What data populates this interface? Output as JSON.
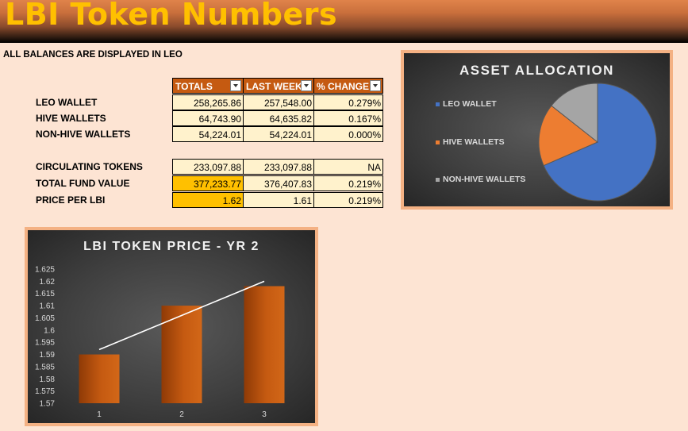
{
  "header": {
    "title": "LBI Token Numbers",
    "subtitle": "ALL BALANCES ARE DISPLAYED IN LEO"
  },
  "table": {
    "columns": [
      "TOTALS",
      "LAST WEEK",
      "% CHANGE"
    ],
    "wallets": [
      {
        "label": "LEO WALLET",
        "totals": "258,265.86",
        "last_week": "257,548.00",
        "change": "0.279%"
      },
      {
        "label": "HIVE WALLETS",
        "totals": "64,743.90",
        "last_week": "64,635.82",
        "change": "0.167%"
      },
      {
        "label": "NON-HIVE WALLETS",
        "totals": "54,224.01",
        "last_week": "54,224.01",
        "change": "0.000%"
      }
    ],
    "summary": [
      {
        "label": "CIRCULATING TOKENS",
        "totals": "233,097.88",
        "last_week": "233,097.88",
        "change": "NA"
      },
      {
        "label": "TOTAL FUND VALUE",
        "totals": "377,233.77",
        "last_week": "376,407.83",
        "change": "0.219%"
      },
      {
        "label": "PRICE PER LBI",
        "totals": "1.62",
        "last_week": "1.61",
        "change": "0.219%"
      }
    ]
  },
  "colors": {
    "accent_orange": "#c55a11",
    "highlight_gold": "#ffc000",
    "pie_blue": "#4472c4",
    "pie_orange": "#ed7d31",
    "pie_gray": "#a5a5a5"
  },
  "chart_data": [
    {
      "type": "pie",
      "title": "ASSET ALLOCATION",
      "labels": [
        "LEO WALLET",
        "HIVE WALLETS",
        "NON-HIVE WALLETS"
      ],
      "values": [
        258265.86,
        64743.9,
        54224.01
      ],
      "colors": [
        "#4472c4",
        "#ed7d31",
        "#a5a5a5"
      ],
      "legend": "left"
    },
    {
      "type": "bar",
      "title": "LBI TOKEN  PRICE - YR 2",
      "categories": [
        "1",
        "2",
        "3"
      ],
      "values": [
        1.59,
        1.61,
        1.618
      ],
      "trendline": {
        "start": 1.592,
        "end": 1.62
      },
      "ylim": [
        1.57,
        1.625
      ],
      "yticks": [
        "1.625",
        "1.62",
        "1.615",
        "1.61",
        "1.605",
        "1.6",
        "1.595",
        "1.59",
        "1.585",
        "1.58",
        "1.575",
        "1.57"
      ],
      "xlabel": "",
      "ylabel": ""
    }
  ]
}
